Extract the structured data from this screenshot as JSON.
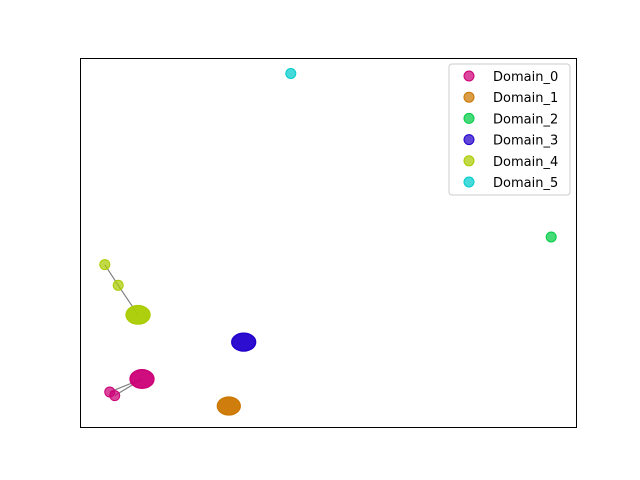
{
  "chart_data": {
    "type": "scatter",
    "title": "",
    "xlabel": "",
    "ylabel": "",
    "axis_ticks": "none",
    "grid": false,
    "legend_placement": "top-right",
    "xlim": [
      0,
      100
    ],
    "ylim": [
      0,
      100
    ],
    "edges": [
      {
        "series": "Domain_0",
        "from": [
          6,
          9.5
        ],
        "to": [
          12.5,
          13
        ]
      },
      {
        "series": "Domain_0",
        "from": [
          7,
          8.5
        ],
        "to": [
          12.5,
          13
        ]
      },
      {
        "series": "Domain_4",
        "from": [
          5,
          44
        ],
        "to": [
          7.7,
          38.4
        ]
      },
      {
        "series": "Domain_4",
        "from": [
          7.7,
          38.4
        ],
        "to": [
          11.7,
          30.4
        ]
      }
    ],
    "series": [
      {
        "name": "Domain_0",
        "color": "#cc0077",
        "points": [
          {
            "x": 6,
            "y": 9.5
          },
          {
            "x": 7,
            "y": 8.5
          }
        ],
        "cluster": {
          "x": 12.5,
          "y": 13,
          "rx": 2.4,
          "ry": 2.5
        }
      },
      {
        "name": "Domain_1",
        "color": "#cc7700",
        "points": [],
        "cluster": {
          "x": 30,
          "y": 5.7,
          "rx": 2.3,
          "ry": 2.4
        }
      },
      {
        "name": "Domain_2",
        "color": "#00cc44",
        "points": [
          {
            "x": 95,
            "y": 51.5
          }
        ],
        "cluster": null
      },
      {
        "name": "Domain_3",
        "color": "#2200cc",
        "points": [],
        "cluster": {
          "x": 33,
          "y": 23,
          "rx": 2.4,
          "ry": 2.4
        }
      },
      {
        "name": "Domain_4",
        "color": "#aacc00",
        "points": [
          {
            "x": 5,
            "y": 44
          },
          {
            "x": 7.7,
            "y": 38.4
          }
        ],
        "cluster": {
          "x": 11.7,
          "y": 30.4,
          "rx": 2.4,
          "ry": 2.5
        }
      },
      {
        "name": "Domain_5",
        "color": "#00cccc",
        "points": [
          {
            "x": 42.5,
            "y": 95.8
          }
        ],
        "cluster": null
      }
    ]
  }
}
